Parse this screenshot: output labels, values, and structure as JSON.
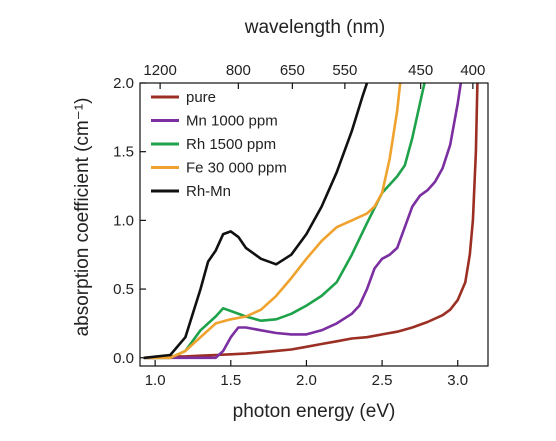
{
  "chart_data": {
    "type": "line",
    "xlabel": "photon energy (eV)",
    "ylabel": "absorption coefficient (cm⁻¹)",
    "top_xlabel": "wavelength (nm)",
    "xlim": [
      0.9,
      3.2
    ],
    "ylim": [
      -0.06,
      2.0
    ],
    "x_ticks": [
      1.0,
      1.5,
      2.0,
      2.5,
      3.0
    ],
    "x_tick_labels": [
      "1.0",
      "1.5",
      "2.0",
      "2.5",
      "3.0"
    ],
    "y_ticks": [
      0.0,
      0.5,
      1.0,
      1.5,
      2.0
    ],
    "y_tick_labels": [
      "0.0",
      "0.5",
      "1.0",
      "1.5",
      "2.0"
    ],
    "top_ticks": [
      {
        "label": "1200",
        "energy": 1.033
      },
      {
        "label": "800",
        "energy": 1.55
      },
      {
        "label": "650",
        "energy": 1.907
      },
      {
        "label": "550",
        "energy": 2.254
      },
      {
        "label": "450",
        "energy": 2.755
      },
      {
        "label": "400",
        "energy": 3.1
      }
    ],
    "grid": false,
    "legend_position": "top-left",
    "series": [
      {
        "name": "pure",
        "color": "#9c2f24",
        "points": [
          [
            0.93,
            0.0
          ],
          [
            1.0,
            0.0
          ],
          [
            1.1,
            0.01
          ],
          [
            1.2,
            0.01
          ],
          [
            1.3,
            0.015
          ],
          [
            1.4,
            0.02
          ],
          [
            1.5,
            0.025
          ],
          [
            1.6,
            0.03
          ],
          [
            1.7,
            0.04
          ],
          [
            1.8,
            0.05
          ],
          [
            1.9,
            0.06
          ],
          [
            2.0,
            0.08
          ],
          [
            2.1,
            0.1
          ],
          [
            2.2,
            0.12
          ],
          [
            2.3,
            0.14
          ],
          [
            2.4,
            0.15
          ],
          [
            2.5,
            0.17
          ],
          [
            2.6,
            0.19
          ],
          [
            2.7,
            0.22
          ],
          [
            2.8,
            0.26
          ],
          [
            2.9,
            0.31
          ],
          [
            2.95,
            0.35
          ],
          [
            3.0,
            0.42
          ],
          [
            3.05,
            0.55
          ],
          [
            3.08,
            0.75
          ],
          [
            3.1,
            1.0
          ],
          [
            3.12,
            1.5
          ],
          [
            3.13,
            2.0
          ]
        ]
      },
      {
        "name": "Mn 1000 ppm",
        "color": "#7b2fa0",
        "points": [
          [
            0.93,
            0.0
          ],
          [
            1.2,
            0.0
          ],
          [
            1.4,
            0.0
          ],
          [
            1.45,
            0.05
          ],
          [
            1.5,
            0.15
          ],
          [
            1.55,
            0.22
          ],
          [
            1.6,
            0.22
          ],
          [
            1.7,
            0.2
          ],
          [
            1.8,
            0.18
          ],
          [
            1.9,
            0.17
          ],
          [
            2.0,
            0.17
          ],
          [
            2.1,
            0.2
          ],
          [
            2.2,
            0.25
          ],
          [
            2.3,
            0.32
          ],
          [
            2.35,
            0.38
          ],
          [
            2.4,
            0.5
          ],
          [
            2.45,
            0.65
          ],
          [
            2.5,
            0.72
          ],
          [
            2.55,
            0.75
          ],
          [
            2.6,
            0.8
          ],
          [
            2.65,
            0.95
          ],
          [
            2.7,
            1.1
          ],
          [
            2.75,
            1.18
          ],
          [
            2.8,
            1.22
          ],
          [
            2.85,
            1.28
          ],
          [
            2.9,
            1.38
          ],
          [
            2.95,
            1.55
          ],
          [
            3.0,
            1.85
          ],
          [
            3.02,
            2.0
          ]
        ]
      },
      {
        "name": "Rh 1500 ppm",
        "color": "#1fa34a",
        "points": [
          [
            0.93,
            0.0
          ],
          [
            1.1,
            0.0
          ],
          [
            1.2,
            0.05
          ],
          [
            1.3,
            0.2
          ],
          [
            1.4,
            0.3
          ],
          [
            1.45,
            0.36
          ],
          [
            1.5,
            0.34
          ],
          [
            1.6,
            0.3
          ],
          [
            1.7,
            0.27
          ],
          [
            1.8,
            0.28
          ],
          [
            1.9,
            0.32
          ],
          [
            2.0,
            0.38
          ],
          [
            2.1,
            0.45
          ],
          [
            2.2,
            0.55
          ],
          [
            2.3,
            0.75
          ],
          [
            2.4,
            0.98
          ],
          [
            2.5,
            1.2
          ],
          [
            2.6,
            1.32
          ],
          [
            2.65,
            1.4
          ],
          [
            2.7,
            1.6
          ],
          [
            2.75,
            1.85
          ],
          [
            2.78,
            2.0
          ]
        ]
      },
      {
        "name": "Fe 30 000 ppm",
        "color": "#f0a22e",
        "points": [
          [
            0.93,
            0.0
          ],
          [
            1.1,
            0.0
          ],
          [
            1.2,
            0.05
          ],
          [
            1.3,
            0.15
          ],
          [
            1.4,
            0.25
          ],
          [
            1.5,
            0.28
          ],
          [
            1.6,
            0.3
          ],
          [
            1.7,
            0.35
          ],
          [
            1.8,
            0.45
          ],
          [
            1.9,
            0.58
          ],
          [
            2.0,
            0.72
          ],
          [
            2.1,
            0.85
          ],
          [
            2.2,
            0.95
          ],
          [
            2.3,
            1.0
          ],
          [
            2.4,
            1.05
          ],
          [
            2.45,
            1.1
          ],
          [
            2.5,
            1.2
          ],
          [
            2.55,
            1.45
          ],
          [
            2.6,
            1.8
          ],
          [
            2.62,
            2.0
          ]
        ]
      },
      {
        "name": "Rh-Mn",
        "color": "#111111",
        "points": [
          [
            0.93,
            0.0
          ],
          [
            1.1,
            0.02
          ],
          [
            1.2,
            0.15
          ],
          [
            1.3,
            0.5
          ],
          [
            1.35,
            0.7
          ],
          [
            1.4,
            0.78
          ],
          [
            1.45,
            0.9
          ],
          [
            1.5,
            0.92
          ],
          [
            1.55,
            0.88
          ],
          [
            1.6,
            0.8
          ],
          [
            1.7,
            0.72
          ],
          [
            1.8,
            0.68
          ],
          [
            1.9,
            0.75
          ],
          [
            2.0,
            0.9
          ],
          [
            2.1,
            1.1
          ],
          [
            2.2,
            1.35
          ],
          [
            2.3,
            1.65
          ],
          [
            2.37,
            1.9
          ],
          [
            2.4,
            2.0
          ]
        ]
      }
    ]
  }
}
